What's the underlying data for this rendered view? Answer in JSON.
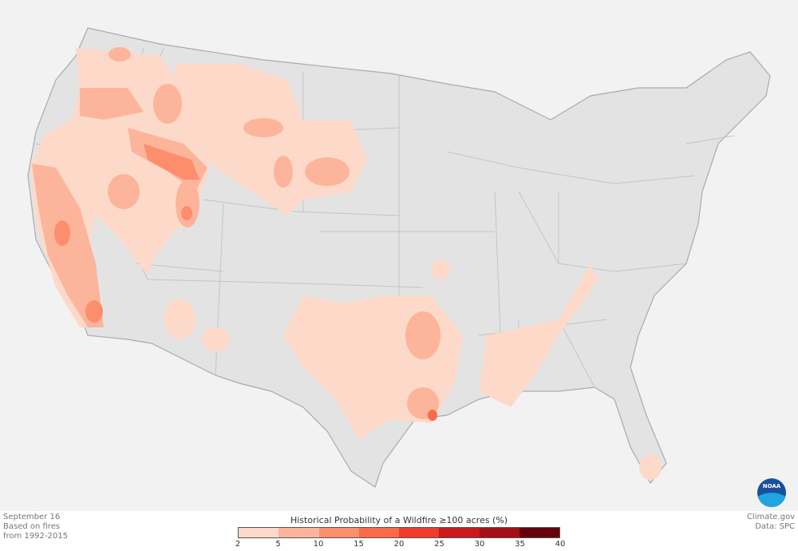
{
  "map": {
    "title": "Historical Probability of a Wildfire ≥100 acres (%)",
    "date": "September 16",
    "note_line1": "Based on fires",
    "note_line2": "from 1992-2015",
    "credit": "Climate.gov",
    "data_source": "Data: SPC",
    "logo": "NOAA"
  },
  "legend": {
    "colors": [
      "#fdd9c9",
      "#fcb59a",
      "#fc8e6e",
      "#fb6a4a",
      "#ef3b2c",
      "#cb181d",
      "#a50f15",
      "#67000d"
    ],
    "ticks": [
      "2",
      "5",
      "10",
      "15",
      "20",
      "25",
      "30",
      "35",
      "40"
    ]
  },
  "colors": {
    "land": "#e3e3e3",
    "background": "#f4f4f4",
    "borders": "#b8b8b8"
  }
}
